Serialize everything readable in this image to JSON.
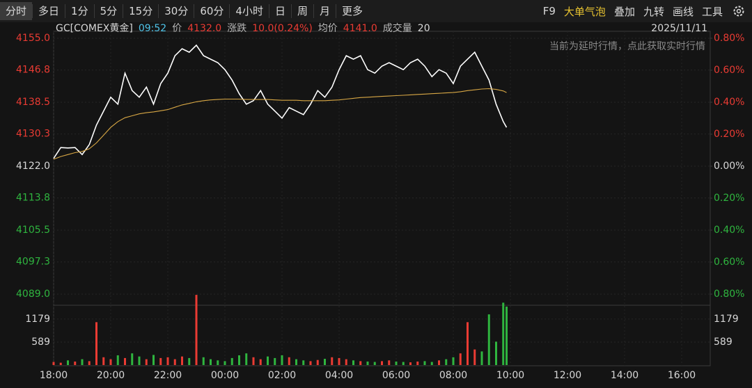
{
  "toolbar": {
    "tabs": [
      "分时",
      "多日",
      "1分",
      "5分",
      "15分",
      "30分",
      "60分",
      "4小时",
      "日",
      "周",
      "月",
      "更多"
    ],
    "tools": [
      "F9",
      "大单气泡",
      "叠加",
      "九转",
      "画线",
      "工具"
    ]
  },
  "info": {
    "symbol": "GC[COMEX黄金]",
    "time": "09:52",
    "price": "4132.0",
    "change_label": "涨跌",
    "change": "10.0(0.24%)",
    "avg": "4141.0",
    "volume": "20",
    "date": "2025/11/11"
  },
  "notice": "当前为延时行情，点此获取实时行情",
  "chart_data": {
    "type": "line",
    "up_color": "#ea3b33",
    "down_color": "#2fb53f",
    "x": [
      "18:00",
      "18:15",
      "18:30",
      "18:45",
      "19:00",
      "19:15",
      "19:30",
      "19:45",
      "20:00",
      "20:15",
      "20:30",
      "20:45",
      "21:00",
      "21:15",
      "21:30",
      "21:45",
      "22:00",
      "22:15",
      "22:30",
      "22:45",
      "23:00",
      "23:15",
      "23:30",
      "23:45",
      "00:00",
      "00:15",
      "00:30",
      "00:45",
      "01:00",
      "01:15",
      "01:30",
      "01:45",
      "02:00",
      "02:15",
      "02:30",
      "02:45",
      "03:00",
      "03:15",
      "03:30",
      "03:45",
      "04:00",
      "04:15",
      "04:30",
      "04:45",
      "05:00",
      "05:15",
      "05:30",
      "05:45",
      "06:00",
      "06:15",
      "06:30",
      "06:45",
      "07:00",
      "07:15",
      "07:30",
      "07:45",
      "08:00",
      "08:15",
      "08:30",
      "08:45",
      "09:00",
      "09:15",
      "09:30",
      "09:45",
      "09:52"
    ],
    "xlim": [
      "18:00",
      "17:00"
    ],
    "xticks": [
      "18:00",
      "20:00",
      "22:00",
      "00:00",
      "02:00",
      "04:00",
      "06:00",
      "08:00",
      "10:00",
      "12:00",
      "14:00",
      "16:00"
    ],
    "ylim": [
      4089,
      4155
    ],
    "yticks": [
      {
        "value": 4155,
        "label": "4155.0"
      },
      {
        "value": 4146.8,
        "label": "4146.8"
      },
      {
        "value": 4138.5,
        "label": "4138.5"
      },
      {
        "value": 4130.3,
        "label": "4130.3"
      },
      {
        "value": 4122,
        "label": "4122.0"
      },
      {
        "value": 4113.8,
        "label": "4113.8"
      },
      {
        "value": 4105.5,
        "label": "4105.5"
      },
      {
        "value": 4097.3,
        "label": "4097.3"
      },
      {
        "value": 4089,
        "label": "4089.0"
      }
    ],
    "y2lim": [
      -0.8,
      0.8
    ],
    "y2ticks": [
      {
        "value": 0.8,
        "label": "0.80%"
      },
      {
        "value": 0.6,
        "label": "0.60%"
      },
      {
        "value": 0.4,
        "label": "0.40%"
      },
      {
        "value": 0.2,
        "label": "0.20%"
      },
      {
        "value": 0,
        "label": "0.00%"
      },
      {
        "value": -0.2,
        "label": "0.20%"
      },
      {
        "value": -0.4,
        "label": "0.40%"
      },
      {
        "value": -0.6,
        "label": "0.60%"
      },
      {
        "value": -0.8,
        "label": "0.80%"
      }
    ],
    "vlim": [
      0,
      1516
    ],
    "vticks": [
      1179,
      589
    ],
    "series": [
      {
        "name": "价",
        "color": "#ffffff",
        "values": [
          4124.0,
          4126.8,
          4126.7,
          4126.8,
          4125.0,
          4127.6,
          4132.6,
          4136.2,
          4139.8,
          4138.0,
          4146.0,
          4141.5,
          4139.8,
          4142.4,
          4138.0,
          4143.3,
          4146.0,
          4150.5,
          4152.3,
          4151.4,
          4153.2,
          4150.5,
          4149.6,
          4148.7,
          4146.9,
          4144.2,
          4140.7,
          4138.0,
          4138.9,
          4141.5,
          4138.0,
          4136.2,
          4134.4,
          4137.1,
          4136.2,
          4135.3,
          4138.0,
          4141.5,
          4139.8,
          4142.4,
          4146.9,
          4150.5,
          4149.6,
          4150.5,
          4146.9,
          4146.0,
          4147.8,
          4148.7,
          4147.8,
          4146.9,
          4148.7,
          4149.6,
          4147.8,
          4145.1,
          4146.9,
          4146.0,
          4143.3,
          4147.8,
          4149.6,
          4151.4,
          4147.8,
          4144.2,
          4138.0,
          4133.5,
          4132.0
        ]
      },
      {
        "name": "均价",
        "color": "#d9a845",
        "values": [
          4123.8,
          4124.5,
          4125,
          4125.5,
          4125.8,
          4126.5,
          4128,
          4130,
          4132,
          4133.5,
          4134.5,
          4135,
          4135.5,
          4135.8,
          4136,
          4136.3,
          4136.6,
          4137.2,
          4137.8,
          4138.2,
          4138.6,
          4138.9,
          4139.1,
          4139.2,
          4139.3,
          4139.3,
          4139.3,
          4139.2,
          4139.2,
          4139.2,
          4139.2,
          4139.1,
          4139.0,
          4139.0,
          4139.0,
          4138.9,
          4138.9,
          4138.9,
          4138.9,
          4139.0,
          4139.1,
          4139.3,
          4139.5,
          4139.7,
          4139.8,
          4139.9,
          4140.0,
          4140.1,
          4140.2,
          4140.3,
          4140.4,
          4140.5,
          4140.6,
          4140.7,
          4140.8,
          4140.9,
          4141.0,
          4141.2,
          4141.5,
          4141.7,
          4141.9,
          4142.0,
          4141.8,
          4141.4,
          4141.0
        ]
      },
      {
        "name": "成交量",
        "axis": "volume",
        "values": [
          80,
          60,
          120,
          90,
          150,
          100,
          1100,
          200,
          150,
          250,
          180,
          300,
          220,
          150,
          260,
          180,
          200,
          150,
          220,
          180,
          1800,
          200,
          150,
          120,
          100,
          180,
          250,
          300,
          200,
          150,
          220,
          180,
          250,
          200,
          150,
          120,
          100,
          130,
          160,
          200,
          180,
          150,
          120,
          100,
          90,
          80,
          100,
          120,
          90,
          80,
          70,
          90,
          100,
          80,
          120,
          150,
          200,
          300,
          1100,
          400,
          350,
          1300,
          600,
          1600,
          1500
        ]
      }
    ]
  }
}
